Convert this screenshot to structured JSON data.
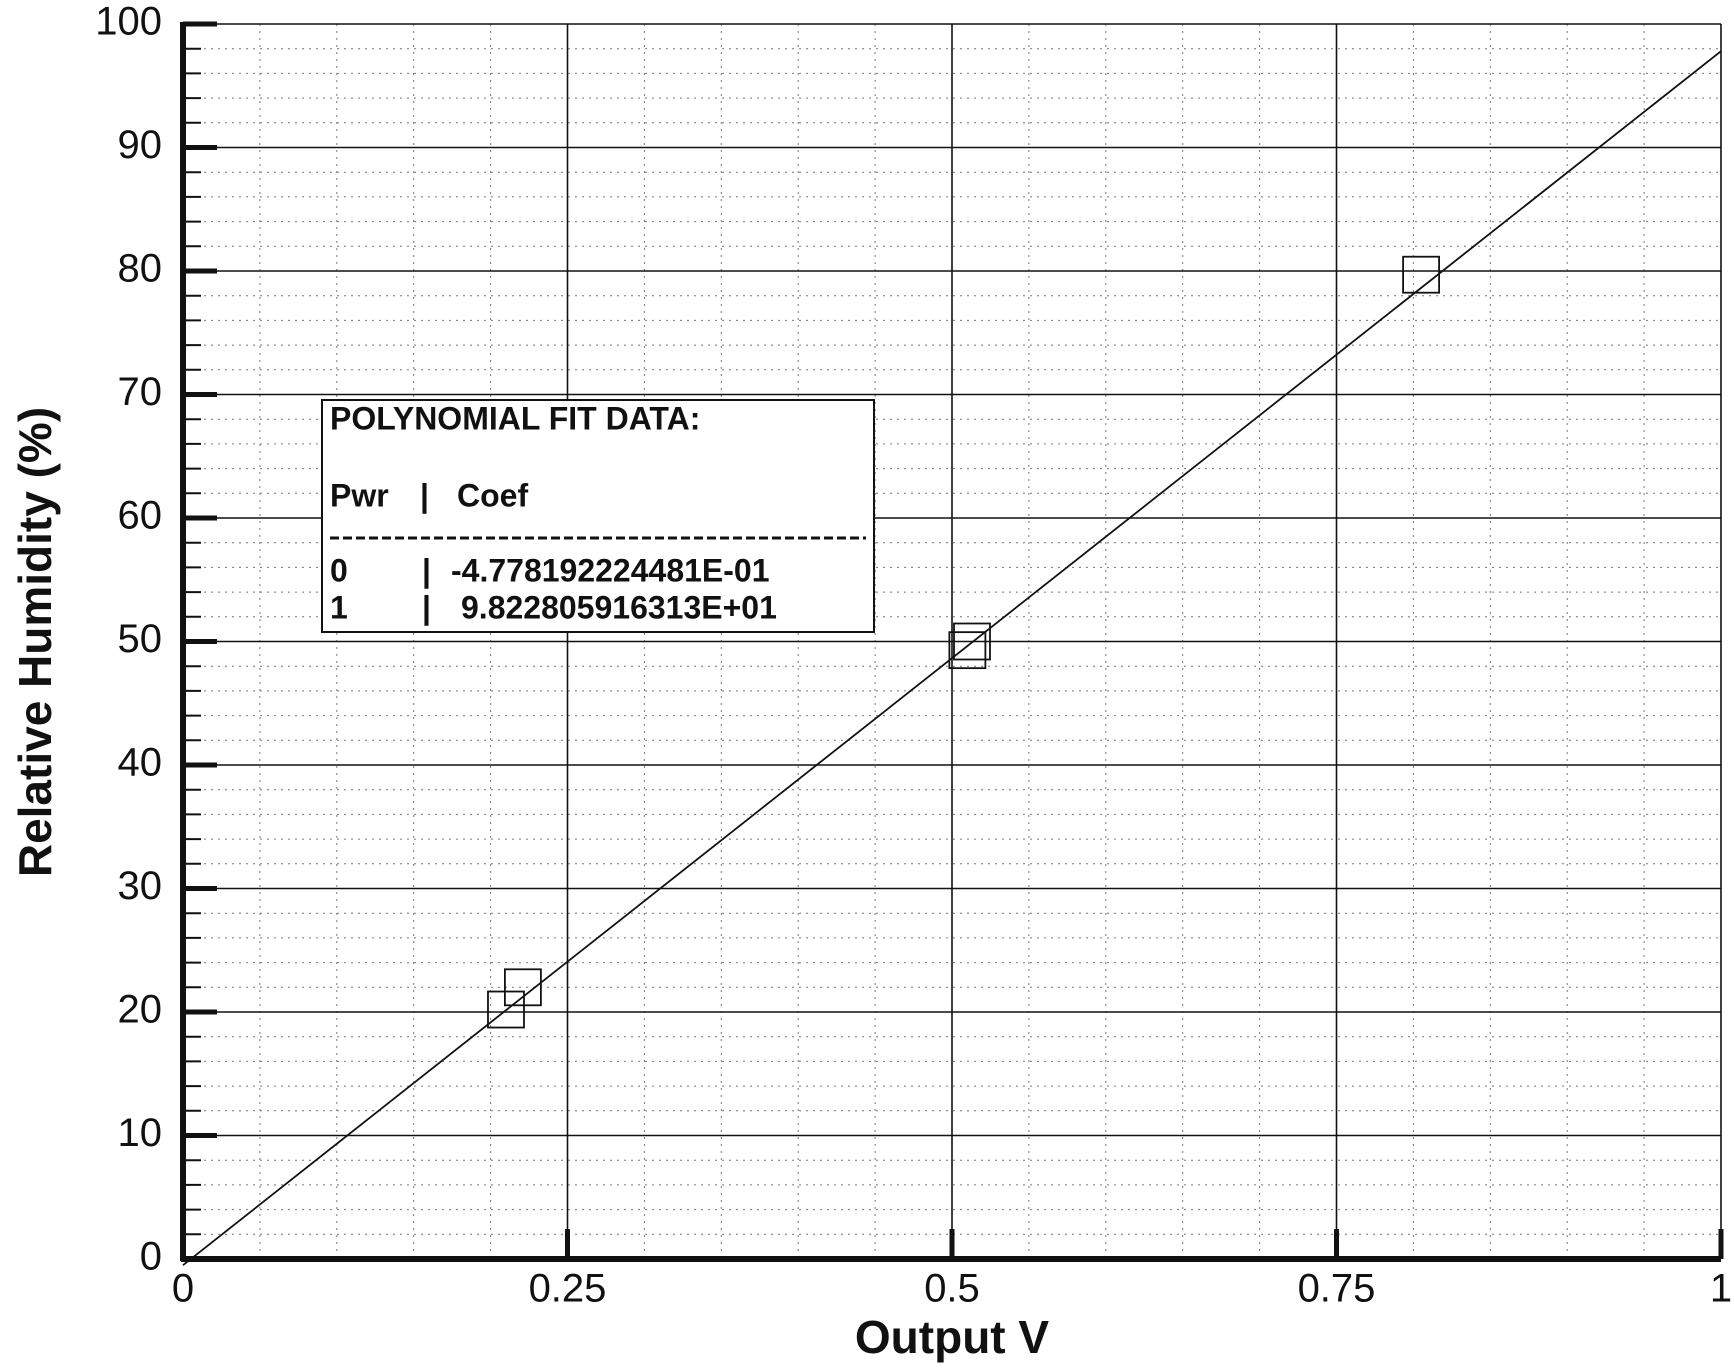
{
  "chart_data": {
    "type": "scatter",
    "x_label": "Output V",
    "y_label": "Relative Humidity (%)",
    "xlim": [
      0,
      1
    ],
    "ylim": [
      0,
      100
    ],
    "xticks": [
      0,
      0.25,
      0.5,
      0.75,
      1
    ],
    "yticks": [
      0,
      10,
      20,
      30,
      40,
      50,
      60,
      70,
      80,
      90,
      100
    ],
    "grid": true,
    "minor_grid": {
      "x_step": 0.05,
      "y_step": 2
    },
    "color": "#111111",
    "points": {
      "x": [
        0.21,
        0.221,
        0.51,
        0.513,
        0.805
      ],
      "values": [
        20.2,
        22.0,
        49.3,
        50.0,
        79.7
      ]
    },
    "fit_line": {
      "x": [
        0,
        1
      ],
      "values": [
        -0.5,
        97.8
      ]
    },
    "fit_box": {
      "title": "POLYNOMIAL FIT DATA:",
      "header": [
        "Pwr",
        "|",
        "Coef"
      ],
      "rows": [
        [
          "0",
          "|",
          "-4.778192224481E-01"
        ],
        [
          "1",
          "|",
          "9.822805916313E+01"
        ]
      ]
    }
  }
}
